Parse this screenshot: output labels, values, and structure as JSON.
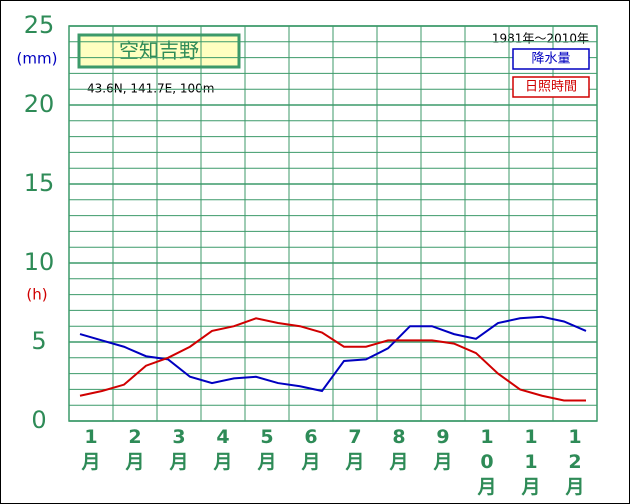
{
  "chart_data": {
    "type": "line",
    "title": "空知吉野",
    "subtitle": "43.6N,  141.7E,  100m",
    "period": "1981年〜2010年",
    "y_unit_labels": [
      "(mm)",
      "(h)"
    ],
    "categories": [
      "1月",
      "2月",
      "3月",
      "4月",
      "5月",
      "6月",
      "7月",
      "8月",
      "9月",
      "10月",
      "11月",
      "12月"
    ],
    "x": [
      0.25,
      0.75,
      1.25,
      1.75,
      2.25,
      2.75,
      3.25,
      3.75,
      4.25,
      4.75,
      5.25,
      5.75,
      6.25,
      6.75,
      7.25,
      7.75,
      8.25,
      8.75,
      9.25,
      9.75,
      10.25,
      10.75,
      11.25,
      11.75
    ],
    "xlim": [
      0,
      12
    ],
    "ylim": [
      0,
      25
    ],
    "yticks": [
      0,
      5,
      10,
      15,
      20,
      25
    ],
    "grid": true,
    "legend": "top-right",
    "series": [
      {
        "name": "降水量",
        "color": "#0000c0",
        "values": [
          5.5,
          5.1,
          4.7,
          4.1,
          3.9,
          2.8,
          2.4,
          2.7,
          2.8,
          2.4,
          2.2,
          1.9,
          3.8,
          3.9,
          4.6,
          6.0,
          6.0,
          5.5,
          5.2,
          6.2,
          6.5,
          6.6,
          6.3,
          5.7
        ]
      },
      {
        "name": "日照時間",
        "color": "#d00000",
        "values": [
          1.6,
          1.9,
          2.3,
          3.5,
          4.0,
          4.7,
          5.7,
          6.0,
          6.5,
          6.2,
          6.0,
          5.6,
          4.7,
          4.7,
          5.1,
          5.1,
          5.1,
          4.9,
          4.3,
          3.0,
          2.0,
          1.6,
          1.3,
          1.3
        ]
      }
    ]
  }
}
